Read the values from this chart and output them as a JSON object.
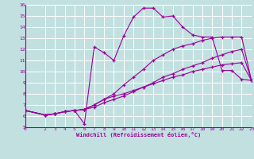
{
  "xlabel": "Windchill (Refroidissement éolien,°C)",
  "xlim": [
    0,
    23
  ],
  "ylim": [
    5,
    16
  ],
  "xticks": [
    0,
    2,
    3,
    4,
    5,
    6,
    7,
    8,
    9,
    10,
    11,
    12,
    13,
    14,
    15,
    16,
    17,
    18,
    19,
    20,
    21,
    22,
    23
  ],
  "yticks": [
    5,
    6,
    7,
    8,
    9,
    10,
    11,
    12,
    13,
    14,
    15,
    16
  ],
  "bg_color": "#c2e0e0",
  "line_color": "#990099",
  "grid_color": "#ffffff",
  "series": [
    {
      "x": [
        0,
        2,
        3,
        4,
        5,
        6,
        7,
        8,
        9,
        10,
        11,
        12,
        13,
        14,
        15,
        16,
        17,
        18,
        19,
        20,
        21,
        22,
        23
      ],
      "y": [
        6.5,
        6.1,
        6.2,
        6.4,
        6.5,
        5.3,
        12.2,
        11.7,
        11.0,
        13.2,
        14.9,
        15.7,
        15.7,
        14.9,
        15.0,
        14.0,
        13.3,
        13.1,
        13.1,
        10.1,
        10.1,
        9.3,
        9.2
      ]
    },
    {
      "x": [
        0,
        2,
        3,
        4,
        5,
        6,
        7,
        8,
        9,
        10,
        11,
        12,
        13,
        14,
        15,
        16,
        17,
        18,
        19,
        20,
        21,
        22,
        23
      ],
      "y": [
        6.5,
        6.1,
        6.2,
        6.4,
        6.5,
        6.6,
        7.0,
        7.5,
        8.0,
        8.8,
        9.5,
        10.2,
        11.0,
        11.5,
        12.0,
        12.3,
        12.5,
        12.8,
        13.0,
        13.1,
        13.1,
        13.1,
        9.2
      ]
    },
    {
      "x": [
        0,
        2,
        3,
        4,
        5,
        6,
        7,
        8,
        9,
        10,
        11,
        12,
        13,
        14,
        15,
        16,
        17,
        18,
        19,
        20,
        21,
        22,
        23
      ],
      "y": [
        6.5,
        6.1,
        6.2,
        6.4,
        6.5,
        6.6,
        6.8,
        7.2,
        7.5,
        7.8,
        8.2,
        8.6,
        9.0,
        9.5,
        9.8,
        10.2,
        10.5,
        10.8,
        11.2,
        11.5,
        11.8,
        12.0,
        9.2
      ]
    },
    {
      "x": [
        0,
        2,
        3,
        4,
        5,
        6,
        7,
        8,
        9,
        10,
        11,
        12,
        13,
        14,
        15,
        16,
        17,
        18,
        19,
        20,
        21,
        22,
        23
      ],
      "y": [
        6.5,
        6.1,
        6.2,
        6.4,
        6.5,
        6.6,
        7.0,
        7.5,
        7.8,
        8.0,
        8.3,
        8.6,
        8.9,
        9.2,
        9.5,
        9.7,
        10.0,
        10.2,
        10.4,
        10.6,
        10.7,
        10.8,
        9.2
      ]
    }
  ]
}
